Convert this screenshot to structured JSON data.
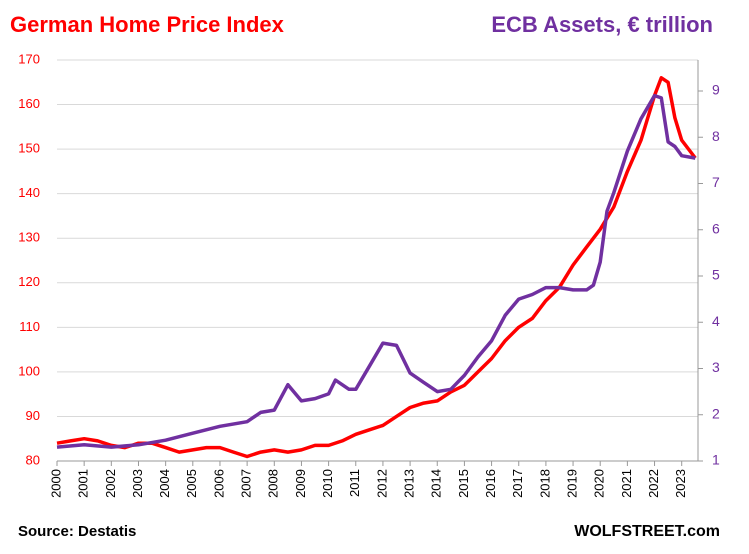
{
  "chart_data": {
    "type": "line",
    "title": "German Home Price Index",
    "title2": "ECB Assets, € trillion",
    "source": "Source: Destatis",
    "credit": "WOLFSTREET.com",
    "xlim": [
      2000,
      2023.6
    ],
    "xticks": [
      2000,
      2001,
      2002,
      2003,
      2004,
      2005,
      2006,
      2007,
      2008,
      2009,
      2010,
      2011,
      2012,
      2013,
      2014,
      2015,
      2016,
      2017,
      2018,
      2019,
      2020,
      2021,
      2022,
      2023
    ],
    "ylim": [
      80,
      170
    ],
    "yticks": [
      80,
      90,
      100,
      110,
      120,
      130,
      140,
      150,
      160,
      170
    ],
    "y2lim": [
      1,
      9.67
    ],
    "y2ticks": [
      1,
      2,
      3,
      4,
      5,
      6,
      7,
      8,
      9
    ],
    "grid": true,
    "series": [
      {
        "name": "German Home Price Index",
        "color": "#ff0000",
        "x": [
          2000,
          2000.5,
          2001,
          2001.5,
          2002,
          2002.5,
          2003,
          2003.5,
          2004,
          2004.5,
          2005,
          2005.5,
          2006,
          2006.5,
          2007,
          2007.5,
          2008,
          2008.5,
          2009,
          2009.5,
          2010,
          2010.5,
          2011,
          2011.5,
          2012,
          2012.5,
          2013,
          2013.5,
          2014,
          2014.5,
          2015,
          2015.5,
          2016,
          2016.5,
          2017,
          2017.5,
          2018,
          2018.5,
          2019,
          2019.5,
          2020,
          2020.5,
          2021,
          2021.5,
          2022,
          2022.25,
          2022.5,
          2022.75,
          2023,
          2023.5
        ],
        "values": [
          84,
          84.5,
          85,
          84.5,
          83.5,
          83,
          84,
          84,
          83,
          82,
          82.5,
          83,
          83,
          82,
          81,
          82,
          82.5,
          82,
          82.5,
          83.5,
          83.5,
          84.5,
          86,
          87,
          88,
          90,
          92,
          93,
          93.5,
          95.5,
          97,
          100,
          103,
          107,
          110,
          112,
          116,
          119,
          124,
          128,
          132,
          137,
          145,
          152,
          162,
          166,
          165,
          157,
          152,
          148
        ]
      },
      {
        "name": "ECB Assets, € trillion",
        "color": "#7030a0",
        "axis": "y2",
        "x": [
          2000,
          2001,
          2002,
          2003,
          2004,
          2005,
          2006,
          2007,
          2007.5,
          2008,
          2008.5,
          2009,
          2009.5,
          2010,
          2010.25,
          2010.75,
          2011,
          2011.5,
          2012,
          2012.5,
          2013,
          2013.5,
          2014,
          2014.5,
          2015,
          2015.5,
          2016,
          2016.5,
          2017,
          2017.5,
          2018,
          2018.5,
          2019,
          2019.5,
          2019.75,
          2020,
          2020.25,
          2020.5,
          2021,
          2021.5,
          2022,
          2022.25,
          2022.5,
          2022.75,
          2023,
          2023.5
        ],
        "values": [
          1.3,
          1.35,
          1.3,
          1.35,
          1.45,
          1.6,
          1.75,
          1.85,
          2.05,
          2.1,
          2.65,
          2.3,
          2.35,
          2.45,
          2.75,
          2.55,
          2.55,
          3.05,
          3.55,
          3.5,
          2.9,
          2.7,
          2.5,
          2.55,
          2.85,
          3.25,
          3.6,
          4.15,
          4.5,
          4.6,
          4.75,
          4.75,
          4.7,
          4.7,
          4.8,
          5.3,
          6.4,
          6.8,
          7.7,
          8.4,
          8.9,
          8.85,
          7.9,
          7.8,
          7.6,
          7.55
        ]
      }
    ]
  }
}
